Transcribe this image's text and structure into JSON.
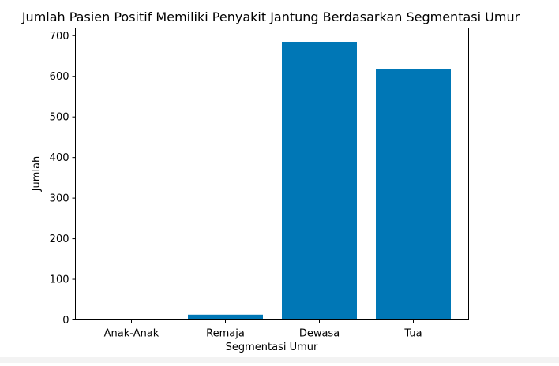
{
  "chart_data": {
    "type": "bar",
    "title": "Jumlah Pasien Positif Memiliki Penyakit Jantung Berdasarkan Segmentasi Umur",
    "xlabel": "Segmentasi Umur",
    "ylabel": "Jumlah",
    "categories": [
      "Anak-Anak",
      "Remaja",
      "Dewasa",
      "Tua"
    ],
    "values": [
      1,
      13,
      685,
      617
    ],
    "ylim": [
      0,
      719
    ],
    "yticks": [
      0,
      100,
      200,
      300,
      400,
      500,
      600,
      700
    ],
    "grid": false,
    "bar_color": "#0077b6"
  }
}
